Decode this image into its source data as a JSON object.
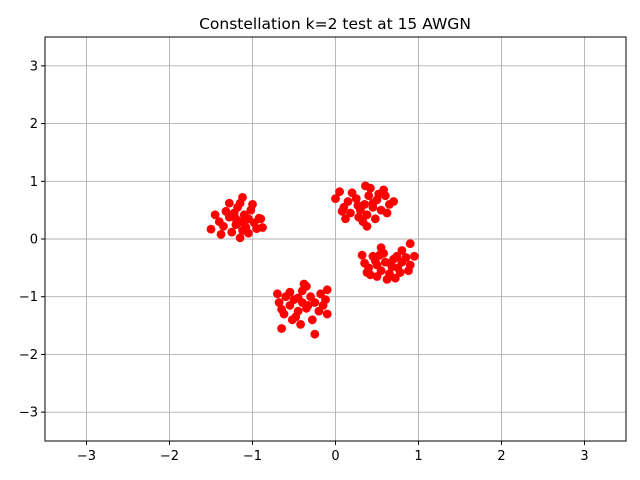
{
  "chart_data": {
    "type": "scatter",
    "title": "Constellation k=2 test at 15 AWGN",
    "xlabel": "",
    "ylabel": "",
    "xlim": [
      -3.5,
      3.5
    ],
    "ylim": [
      -3.5,
      3.5
    ],
    "xticks": [
      -3,
      -2,
      -1,
      0,
      1,
      2,
      3
    ],
    "yticks": [
      -3,
      -2,
      -1,
      0,
      1,
      2,
      3
    ],
    "xtick_labels": [
      "−3",
      "−2",
      "−1",
      "0",
      "1",
      "2",
      "3"
    ],
    "ytick_labels": [
      "−3",
      "−2",
      "−1",
      "0",
      "1",
      "2",
      "3"
    ],
    "grid": true,
    "marker_color": "#ff0000",
    "grid_color": "#b0b0b0",
    "points": [
      [
        -1.15,
        0.3
      ],
      [
        -1.05,
        0.35
      ],
      [
        -1.2,
        0.25
      ],
      [
        -1.1,
        0.42
      ],
      [
        -0.98,
        0.28
      ],
      [
        -1.28,
        0.38
      ],
      [
        -1.12,
        0.15
      ],
      [
        -1.02,
        0.5
      ],
      [
        -1.35,
        0.22
      ],
      [
        -1.18,
        0.55
      ],
      [
        -0.92,
        0.36
      ],
      [
        -1.25,
        0.12
      ],
      [
        -1.08,
        0.2
      ],
      [
        -1.4,
        0.3
      ],
      [
        -0.95,
        0.18
      ],
      [
        -1.22,
        0.45
      ],
      [
        -1.15,
        0.62
      ],
      [
        -1.0,
        0.6
      ],
      [
        -1.32,
        0.48
      ],
      [
        -1.45,
        0.42
      ],
      [
        -1.5,
        0.17
      ],
      [
        -1.12,
        0.72
      ],
      [
        -1.15,
        0.02
      ],
      [
        -0.88,
        0.2
      ],
      [
        -0.9,
        0.35
      ],
      [
        -1.28,
        0.62
      ],
      [
        -1.05,
        0.1
      ],
      [
        -1.38,
        0.08
      ],
      [
        -1.2,
        0.35
      ],
      [
        -1.1,
        0.28
      ],
      [
        0.35,
        0.6
      ],
      [
        0.25,
        0.7
      ],
      [
        0.45,
        0.55
      ],
      [
        0.3,
        0.5
      ],
      [
        0.4,
        0.75
      ],
      [
        0.15,
        0.65
      ],
      [
        0.5,
        0.68
      ],
      [
        0.38,
        0.42
      ],
      [
        0.2,
        0.8
      ],
      [
        0.55,
        0.5
      ],
      [
        0.1,
        0.55
      ],
      [
        0.42,
        0.88
      ],
      [
        0.6,
        0.75
      ],
      [
        0.28,
        0.38
      ],
      [
        0.48,
        0.35
      ],
      [
        0.05,
        0.82
      ],
      [
        0.65,
        0.6
      ],
      [
        0.33,
        0.3
      ],
      [
        0.18,
        0.45
      ],
      [
        0.58,
        0.85
      ],
      [
        0.0,
        0.7
      ],
      [
        0.7,
        0.65
      ],
      [
        0.38,
        0.22
      ],
      [
        0.12,
        0.35
      ],
      [
        0.45,
        0.62
      ],
      [
        0.27,
        0.58
      ],
      [
        0.36,
        0.92
      ],
      [
        0.52,
        0.78
      ],
      [
        0.08,
        0.48
      ],
      [
        0.62,
        0.45
      ],
      [
        0.6,
        -0.4
      ],
      [
        0.5,
        -0.45
      ],
      [
        0.7,
        -0.35
      ],
      [
        0.55,
        -0.55
      ],
      [
        0.75,
        -0.5
      ],
      [
        0.45,
        -0.3
      ],
      [
        0.8,
        -0.4
      ],
      [
        0.4,
        -0.5
      ],
      [
        0.65,
        -0.6
      ],
      [
        0.85,
        -0.32
      ],
      [
        0.5,
        -0.65
      ],
      [
        0.35,
        -0.42
      ],
      [
        0.9,
        -0.45
      ],
      [
        0.58,
        -0.25
      ],
      [
        0.72,
        -0.68
      ],
      [
        0.42,
        -0.62
      ],
      [
        0.95,
        -0.3
      ],
      [
        0.32,
        -0.28
      ],
      [
        0.55,
        -0.15
      ],
      [
        0.8,
        -0.2
      ],
      [
        0.9,
        -0.08
      ],
      [
        0.68,
        -0.48
      ],
      [
        0.62,
        -0.7
      ],
      [
        0.78,
        -0.58
      ],
      [
        0.48,
        -0.38
      ],
      [
        0.38,
        -0.58
      ],
      [
        0.88,
        -0.55
      ],
      [
        0.53,
        -0.28
      ],
      [
        0.66,
        -0.42
      ],
      [
        0.74,
        -0.3
      ],
      [
        -0.4,
        -1.1
      ],
      [
        -0.5,
        -1.05
      ],
      [
        -0.35,
        -1.2
      ],
      [
        -0.45,
        -1.25
      ],
      [
        -0.3,
        -1.0
      ],
      [
        -0.55,
        -1.15
      ],
      [
        -0.6,
        -1.0
      ],
      [
        -0.25,
        -1.1
      ],
      [
        -0.4,
        -0.9
      ],
      [
        -0.48,
        -1.35
      ],
      [
        -0.2,
        -1.25
      ],
      [
        -0.65,
        -1.22
      ],
      [
        -0.35,
        -0.82
      ],
      [
        -0.55,
        -0.92
      ],
      [
        -0.15,
        -1.15
      ],
      [
        -0.68,
        -1.1
      ],
      [
        -0.28,
        -1.4
      ],
      [
        -0.42,
        -1.48
      ],
      [
        -0.62,
        -1.3
      ],
      [
        -0.18,
        -0.95
      ],
      [
        -0.1,
        -1.3
      ],
      [
        -0.7,
        -0.95
      ],
      [
        -0.12,
        -1.05
      ],
      [
        -0.52,
        -1.4
      ],
      [
        -0.38,
        -0.78
      ],
      [
        -0.65,
        -1.55
      ],
      [
        -0.25,
        -1.65
      ],
      [
        -0.1,
        -0.88
      ],
      [
        -0.33,
        -1.15
      ],
      [
        -0.45,
        -1.02
      ]
    ]
  }
}
